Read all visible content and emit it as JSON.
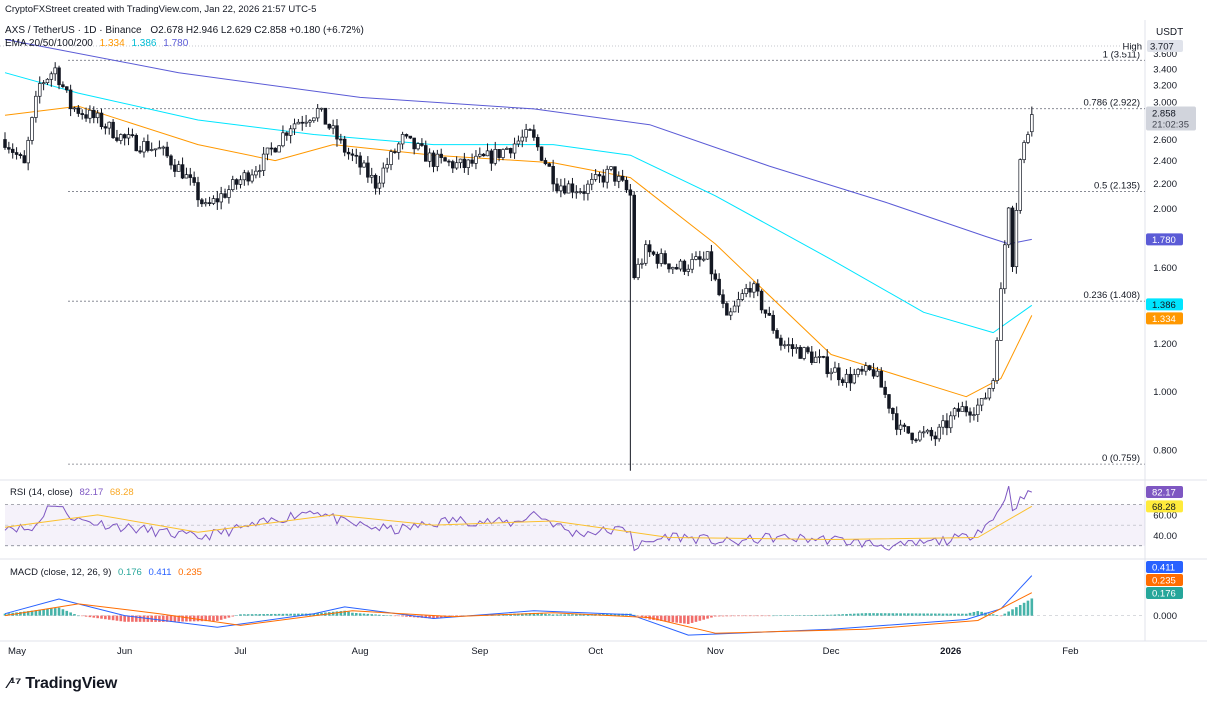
{
  "header": {
    "created_by": "CryptoFXStreet created with TradingView.com, Jan 22, 2026 21:57 UTC-5",
    "symbol": "AXS / TetherUS · 1D · Binance",
    "ohlc": "O2.678  H2.946  L2.629  C2.858  +0.180 (+6.72%)",
    "ema_label": "EMA 20/50/100/200",
    "ema_values": [
      "1.334",
      "1.386",
      "1.780"
    ],
    "currency": "USDT"
  },
  "brand": "TradingView",
  "colors": {
    "up": "#131722",
    "down": "#131722",
    "ema50": "#ff9800",
    "ema100": "#00e5ff",
    "ema200": "#5b5bd6",
    "rsi": "#7e57c2",
    "rsi_ma": "#fbc02d",
    "macd": "#2962ff",
    "signal": "#ff6d00",
    "hist_up": "#26a69a",
    "hist_down": "#ef5350",
    "fib": "#787b86"
  },
  "chart_data": [
    {
      "type": "candlestick",
      "title": "AXS / TetherUS · 1D · Binance",
      "x_axis_labels": [
        "May",
        "Jun",
        "Jul",
        "Aug",
        "Sep",
        "Oct",
        "Nov",
        "Dec",
        "2026",
        "Feb"
      ],
      "y_axis_ticks": [
        "3.600",
        "3.400",
        "3.200",
        "3.000",
        "2.600",
        "2.400",
        "2.200",
        "2.000",
        "1.600",
        "1.200",
        "1.000",
        "0.800"
      ],
      "y_log_scale": true,
      "ylim": [
        0.72,
        3.85
      ],
      "last_close": "2.858",
      "countdown": "21:02:35",
      "high_label": "High",
      "high_value": "3.707",
      "ema_badges": [
        "1.780",
        "1.386",
        "1.334"
      ],
      "fib_levels": [
        {
          "label": "1 (3.511)",
          "value": 3.511
        },
        {
          "label": "0.786 (2.922)",
          "value": 2.922
        },
        {
          "label": "0.5 (2.135)",
          "value": 2.135
        },
        {
          "label": "0.236 (1.408)",
          "value": 1.408
        },
        {
          "label": "0 (0.759)",
          "value": 0.759
        }
      ],
      "price_path": [
        {
          "date": "2025-05-01",
          "close": 2.6
        },
        {
          "date": "2025-05-06",
          "close": 2.35
        },
        {
          "date": "2025-05-10",
          "close": 3.2
        },
        {
          "date": "2025-05-14",
          "close": 3.4
        },
        {
          "date": "2025-05-18",
          "close": 2.95
        },
        {
          "date": "2025-05-25",
          "close": 2.8
        },
        {
          "date": "2025-06-01",
          "close": 2.6
        },
        {
          "date": "2025-06-10",
          "close": 2.5
        },
        {
          "date": "2025-06-16",
          "close": 2.3
        },
        {
          "date": "2025-06-22",
          "close": 2.0
        },
        {
          "date": "2025-06-30",
          "close": 2.2
        },
        {
          "date": "2025-07-07",
          "close": 2.4
        },
        {
          "date": "2025-07-14",
          "close": 2.75
        },
        {
          "date": "2025-07-21",
          "close": 2.9
        },
        {
          "date": "2025-07-28",
          "close": 2.5
        },
        {
          "date": "2025-08-05",
          "close": 2.2
        },
        {
          "date": "2025-08-12",
          "close": 2.6
        },
        {
          "date": "2025-08-20",
          "close": 2.4
        },
        {
          "date": "2025-08-28",
          "close": 2.35
        },
        {
          "date": "2025-09-05",
          "close": 2.45
        },
        {
          "date": "2025-09-14",
          "close": 2.65
        },
        {
          "date": "2025-09-21",
          "close": 2.2
        },
        {
          "date": "2025-09-28",
          "close": 2.15
        },
        {
          "date": "2025-10-05",
          "close": 2.3
        },
        {
          "date": "2025-10-10",
          "close": 2.1
        },
        {
          "date": "2025-10-11",
          "close": 1.55
        },
        {
          "date": "2025-10-14",
          "close": 1.7
        },
        {
          "date": "2025-10-22",
          "close": 1.6
        },
        {
          "date": "2025-10-30",
          "close": 1.65
        },
        {
          "date": "2025-11-04",
          "close": 1.3
        },
        {
          "date": "2025-11-10",
          "close": 1.5
        },
        {
          "date": "2025-11-18",
          "close": 1.2
        },
        {
          "date": "2025-11-25",
          "close": 1.15
        },
        {
          "date": "2025-12-05",
          "close": 1.05
        },
        {
          "date": "2025-12-12",
          "close": 1.08
        },
        {
          "date": "2025-12-19",
          "close": 0.86
        },
        {
          "date": "2025-12-28",
          "close": 0.84
        },
        {
          "date": "2026-01-03",
          "close": 0.93
        },
        {
          "date": "2026-01-09",
          "close": 0.95
        },
        {
          "date": "2026-01-12",
          "close": 1.05
        },
        {
          "date": "2026-01-14",
          "close": 1.45
        },
        {
          "date": "2026-01-16",
          "close": 2.05
        },
        {
          "date": "2026-01-17",
          "close": 1.65
        },
        {
          "date": "2026-01-19",
          "close": 2.4
        },
        {
          "date": "2026-01-21",
          "close": 2.68
        },
        {
          "date": "2026-01-22",
          "close": 2.858
        }
      ],
      "ema200_path": [
        {
          "date": "2025-05-01",
          "value": 3.8
        },
        {
          "date": "2025-06-15",
          "value": 3.35
        },
        {
          "date": "2025-08-01",
          "value": 3.05
        },
        {
          "date": "2025-09-15",
          "value": 2.92
        },
        {
          "date": "2025-10-15",
          "value": 2.75
        },
        {
          "date": "2025-11-15",
          "value": 2.35
        },
        {
          "date": "2025-12-15",
          "value": 2.05
        },
        {
          "date": "2026-01-10",
          "value": 1.8
        },
        {
          "date": "2026-01-16",
          "value": 1.75
        },
        {
          "date": "2026-01-22",
          "value": 1.78
        }
      ],
      "ema100_path": [
        {
          "date": "2025-05-01",
          "value": 3.35
        },
        {
          "date": "2025-05-20",
          "value": 3.1
        },
        {
          "date": "2025-06-20",
          "value": 2.8
        },
        {
          "date": "2025-07-20",
          "value": 2.65
        },
        {
          "date": "2025-08-20",
          "value": 2.55
        },
        {
          "date": "2025-09-20",
          "value": 2.55
        },
        {
          "date": "2025-10-10",
          "value": 2.45
        },
        {
          "date": "2025-11-01",
          "value": 2.1
        },
        {
          "date": "2025-12-01",
          "value": 1.65
        },
        {
          "date": "2025-12-25",
          "value": 1.35
        },
        {
          "date": "2026-01-12",
          "value": 1.25
        },
        {
          "date": "2026-01-22",
          "value": 1.386
        }
      ],
      "ema50_path": [
        {
          "date": "2025-05-01",
          "value": 2.85
        },
        {
          "date": "2025-05-20",
          "value": 2.95
        },
        {
          "date": "2025-06-20",
          "value": 2.55
        },
        {
          "date": "2025-07-10",
          "value": 2.4
        },
        {
          "date": "2025-07-25",
          "value": 2.55
        },
        {
          "date": "2025-08-20",
          "value": 2.45
        },
        {
          "date": "2025-09-20",
          "value": 2.38
        },
        {
          "date": "2025-10-10",
          "value": 2.25
        },
        {
          "date": "2025-11-01",
          "value": 1.75
        },
        {
          "date": "2025-12-01",
          "value": 1.15
        },
        {
          "date": "2026-01-05",
          "value": 0.98
        },
        {
          "date": "2026-01-14",
          "value": 1.05
        },
        {
          "date": "2026-01-22",
          "value": 1.334
        }
      ]
    },
    {
      "type": "line",
      "title": "RSI (14, close)",
      "series_values": [
        "82.17",
        "68.28"
      ],
      "y_axis_ticks": [
        "60.00",
        "40.00"
      ],
      "overbought": 70,
      "oversold": 30,
      "ylim": [
        20,
        90
      ],
      "rsi_path": [
        {
          "date": "2025-05-01",
          "value": 50
        },
        {
          "date": "2025-05-08",
          "value": 45
        },
        {
          "date": "2025-05-13",
          "value": 72
        },
        {
          "date": "2025-05-20",
          "value": 55
        },
        {
          "date": "2025-06-01",
          "value": 48
        },
        {
          "date": "2025-06-20",
          "value": 38
        },
        {
          "date": "2025-07-05",
          "value": 50
        },
        {
          "date": "2025-07-20",
          "value": 65
        },
        {
          "date": "2025-07-28",
          "value": 52
        },
        {
          "date": "2025-08-10",
          "value": 45
        },
        {
          "date": "2025-08-25",
          "value": 55
        },
        {
          "date": "2025-09-10",
          "value": 52
        },
        {
          "date": "2025-09-15",
          "value": 62
        },
        {
          "date": "2025-09-25",
          "value": 42
        },
        {
          "date": "2025-10-10",
          "value": 46
        },
        {
          "date": "2025-10-11",
          "value": 28
        },
        {
          "date": "2025-10-20",
          "value": 40
        },
        {
          "date": "2025-11-05",
          "value": 33
        },
        {
          "date": "2025-11-15",
          "value": 38
        },
        {
          "date": "2025-12-01",
          "value": 36
        },
        {
          "date": "2025-12-18",
          "value": 29
        },
        {
          "date": "2026-01-05",
          "value": 38
        },
        {
          "date": "2026-01-12",
          "value": 55
        },
        {
          "date": "2026-01-16",
          "value": 85
        },
        {
          "date": "2026-01-17",
          "value": 68
        },
        {
          "date": "2026-01-22",
          "value": 82.17
        }
      ],
      "rsi_ma_path": [
        {
          "date": "2025-05-01",
          "value": 48
        },
        {
          "date": "2025-05-25",
          "value": 60
        },
        {
          "date": "2025-06-20",
          "value": 43
        },
        {
          "date": "2025-07-25",
          "value": 60
        },
        {
          "date": "2025-08-20",
          "value": 50
        },
        {
          "date": "2025-09-20",
          "value": 54
        },
        {
          "date": "2025-10-20",
          "value": 38
        },
        {
          "date": "2025-12-01",
          "value": 36
        },
        {
          "date": "2026-01-08",
          "value": 38
        },
        {
          "date": "2026-01-22",
          "value": 68.28
        }
      ]
    },
    {
      "type": "bar+line",
      "title": "MACD (close, 12, 26, 9)",
      "series_values": [
        "0.176",
        "0.411",
        "0.235"
      ],
      "y_axis_ticks": [
        "0.000"
      ],
      "ylim": [
        -0.25,
        0.55
      ],
      "macd_path": [
        {
          "date": "2025-05-01",
          "value": 0.02
        },
        {
          "date": "2025-05-15",
          "value": 0.17
        },
        {
          "date": "2025-06-01",
          "value": 0.0
        },
        {
          "date": "2025-06-25",
          "value": -0.12
        },
        {
          "date": "2025-07-20",
          "value": 0.02
        },
        {
          "date": "2025-07-28",
          "value": 0.09
        },
        {
          "date": "2025-08-20",
          "value": -0.03
        },
        {
          "date": "2025-09-15",
          "value": 0.05
        },
        {
          "date": "2025-10-10",
          "value": 0.01
        },
        {
          "date": "2025-10-25",
          "value": -0.2
        },
        {
          "date": "2025-12-01",
          "value": -0.14
        },
        {
          "date": "2026-01-05",
          "value": -0.04
        },
        {
          "date": "2026-01-14",
          "value": 0.07
        },
        {
          "date": "2026-01-22",
          "value": 0.411
        }
      ],
      "signal_path": [
        {
          "date": "2025-05-01",
          "value": 0.0
        },
        {
          "date": "2025-05-20",
          "value": 0.12
        },
        {
          "date": "2025-06-10",
          "value": 0.02
        },
        {
          "date": "2025-07-01",
          "value": -0.1
        },
        {
          "date": "2025-07-30",
          "value": 0.05
        },
        {
          "date": "2025-08-25",
          "value": -0.01
        },
        {
          "date": "2025-09-20",
          "value": 0.03
        },
        {
          "date": "2025-10-15",
          "value": -0.02
        },
        {
          "date": "2025-11-01",
          "value": -0.18
        },
        {
          "date": "2025-12-10",
          "value": -0.14
        },
        {
          "date": "2026-01-08",
          "value": -0.05
        },
        {
          "date": "2026-01-22",
          "value": 0.235
        }
      ]
    }
  ]
}
